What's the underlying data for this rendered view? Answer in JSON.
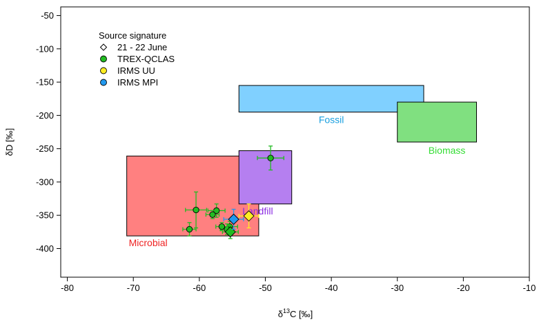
{
  "chart_data": {
    "type": "scatter",
    "xlabel": "δ13C [‰]",
    "xlabel_parts": {
      "prefix": "δ",
      "sup": "13",
      "suffix": "C [‰]"
    },
    "ylabel": "δD [‰]",
    "xlim": [
      -81,
      -10
    ],
    "ylim": [
      -443,
      -37
    ],
    "xticks": [
      -80,
      -70,
      -60,
      -50,
      -40,
      -30,
      -20,
      -10
    ],
    "yticks": [
      -50,
      -100,
      -150,
      -200,
      -250,
      -300,
      -350,
      -400
    ],
    "xtick_labels": [
      "-80",
      "-70",
      "-60",
      "-50",
      "-40",
      "-30",
      "-20",
      "-10"
    ],
    "ytick_labels": [
      "-50",
      "-100",
      "-150",
      "-200",
      "-250",
      "-300",
      "-350",
      "-400"
    ],
    "grid": false,
    "legend": {
      "title": "Source signature",
      "placement": "top-left",
      "entries": [
        {
          "label": "21 - 22 June",
          "marker": "diamond-open"
        },
        {
          "label": "TREX-QCLAS",
          "marker": "circle",
          "color": "#22bb22"
        },
        {
          "label": "IRMS UU",
          "marker": "circle",
          "color": "#ffee22"
        },
        {
          "label": "IRMS MPI",
          "marker": "circle",
          "color": "#2299ee"
        }
      ]
    },
    "regions": [
      {
        "name": "Microbial",
        "x": [
          -71,
          -51
        ],
        "y": [
          -381,
          -261
        ],
        "fill": "#ff8080",
        "label_color": "#ee2222"
      },
      {
        "name": "Landfill",
        "x": [
          -54,
          -46
        ],
        "y": [
          -333,
          -253
        ],
        "fill": "#b57ff0",
        "label_color": "#8a2be2"
      },
      {
        "name": "Fossil",
        "x": [
          -54,
          -26
        ],
        "y": [
          -195,
          -155
        ],
        "fill": "#80d0ff",
        "label_color": "#1aa0e0"
      },
      {
        "name": "Biomass",
        "x": [
          -30,
          -18
        ],
        "y": [
          -240,
          -180
        ],
        "fill": "#80e080",
        "label_color": "#33dd33"
      }
    ],
    "series": [
      {
        "name": "TREX-QCLAS",
        "color": "#22bb22",
        "points": [
          {
            "x": -49.2,
            "y": -264,
            "xerr": 2.0,
            "yerr": 18
          },
          {
            "x": -60.5,
            "y": -342,
            "xerr": 1.6,
            "yerr": 27
          },
          {
            "x": -57.4,
            "y": -343,
            "xerr": 1.3,
            "yerr": 10
          },
          {
            "x": -58.0,
            "y": -349,
            "xerr": 1.0,
            "yerr": 6
          },
          {
            "x": -61.5,
            "y": -371,
            "xerr": 1.0,
            "yerr": 10
          },
          {
            "x": -55.4,
            "y": -367,
            "xerr": 1.2,
            "yerr": 8
          },
          {
            "x": -55.8,
            "y": -371,
            "xerr": 1.0,
            "yerr": 8
          },
          {
            "x": -56.6,
            "y": -367,
            "xerr": 0.9,
            "yerr": 6
          }
        ],
        "campaign_point": {
          "x": -55.3,
          "y": -375,
          "xerr": 1.2,
          "yerr": 10
        }
      },
      {
        "name": "IRMS UU",
        "color": "#ffee22",
        "points": [],
        "campaign_point": {
          "x": -52.5,
          "y": -351,
          "xerr": 1.5,
          "yerr": 18
        }
      },
      {
        "name": "IRMS MPI",
        "color": "#2299ee",
        "points": [],
        "campaign_point": {
          "x": -54.8,
          "y": -356,
          "xerr": 1.5,
          "yerr": 15
        }
      }
    ]
  }
}
